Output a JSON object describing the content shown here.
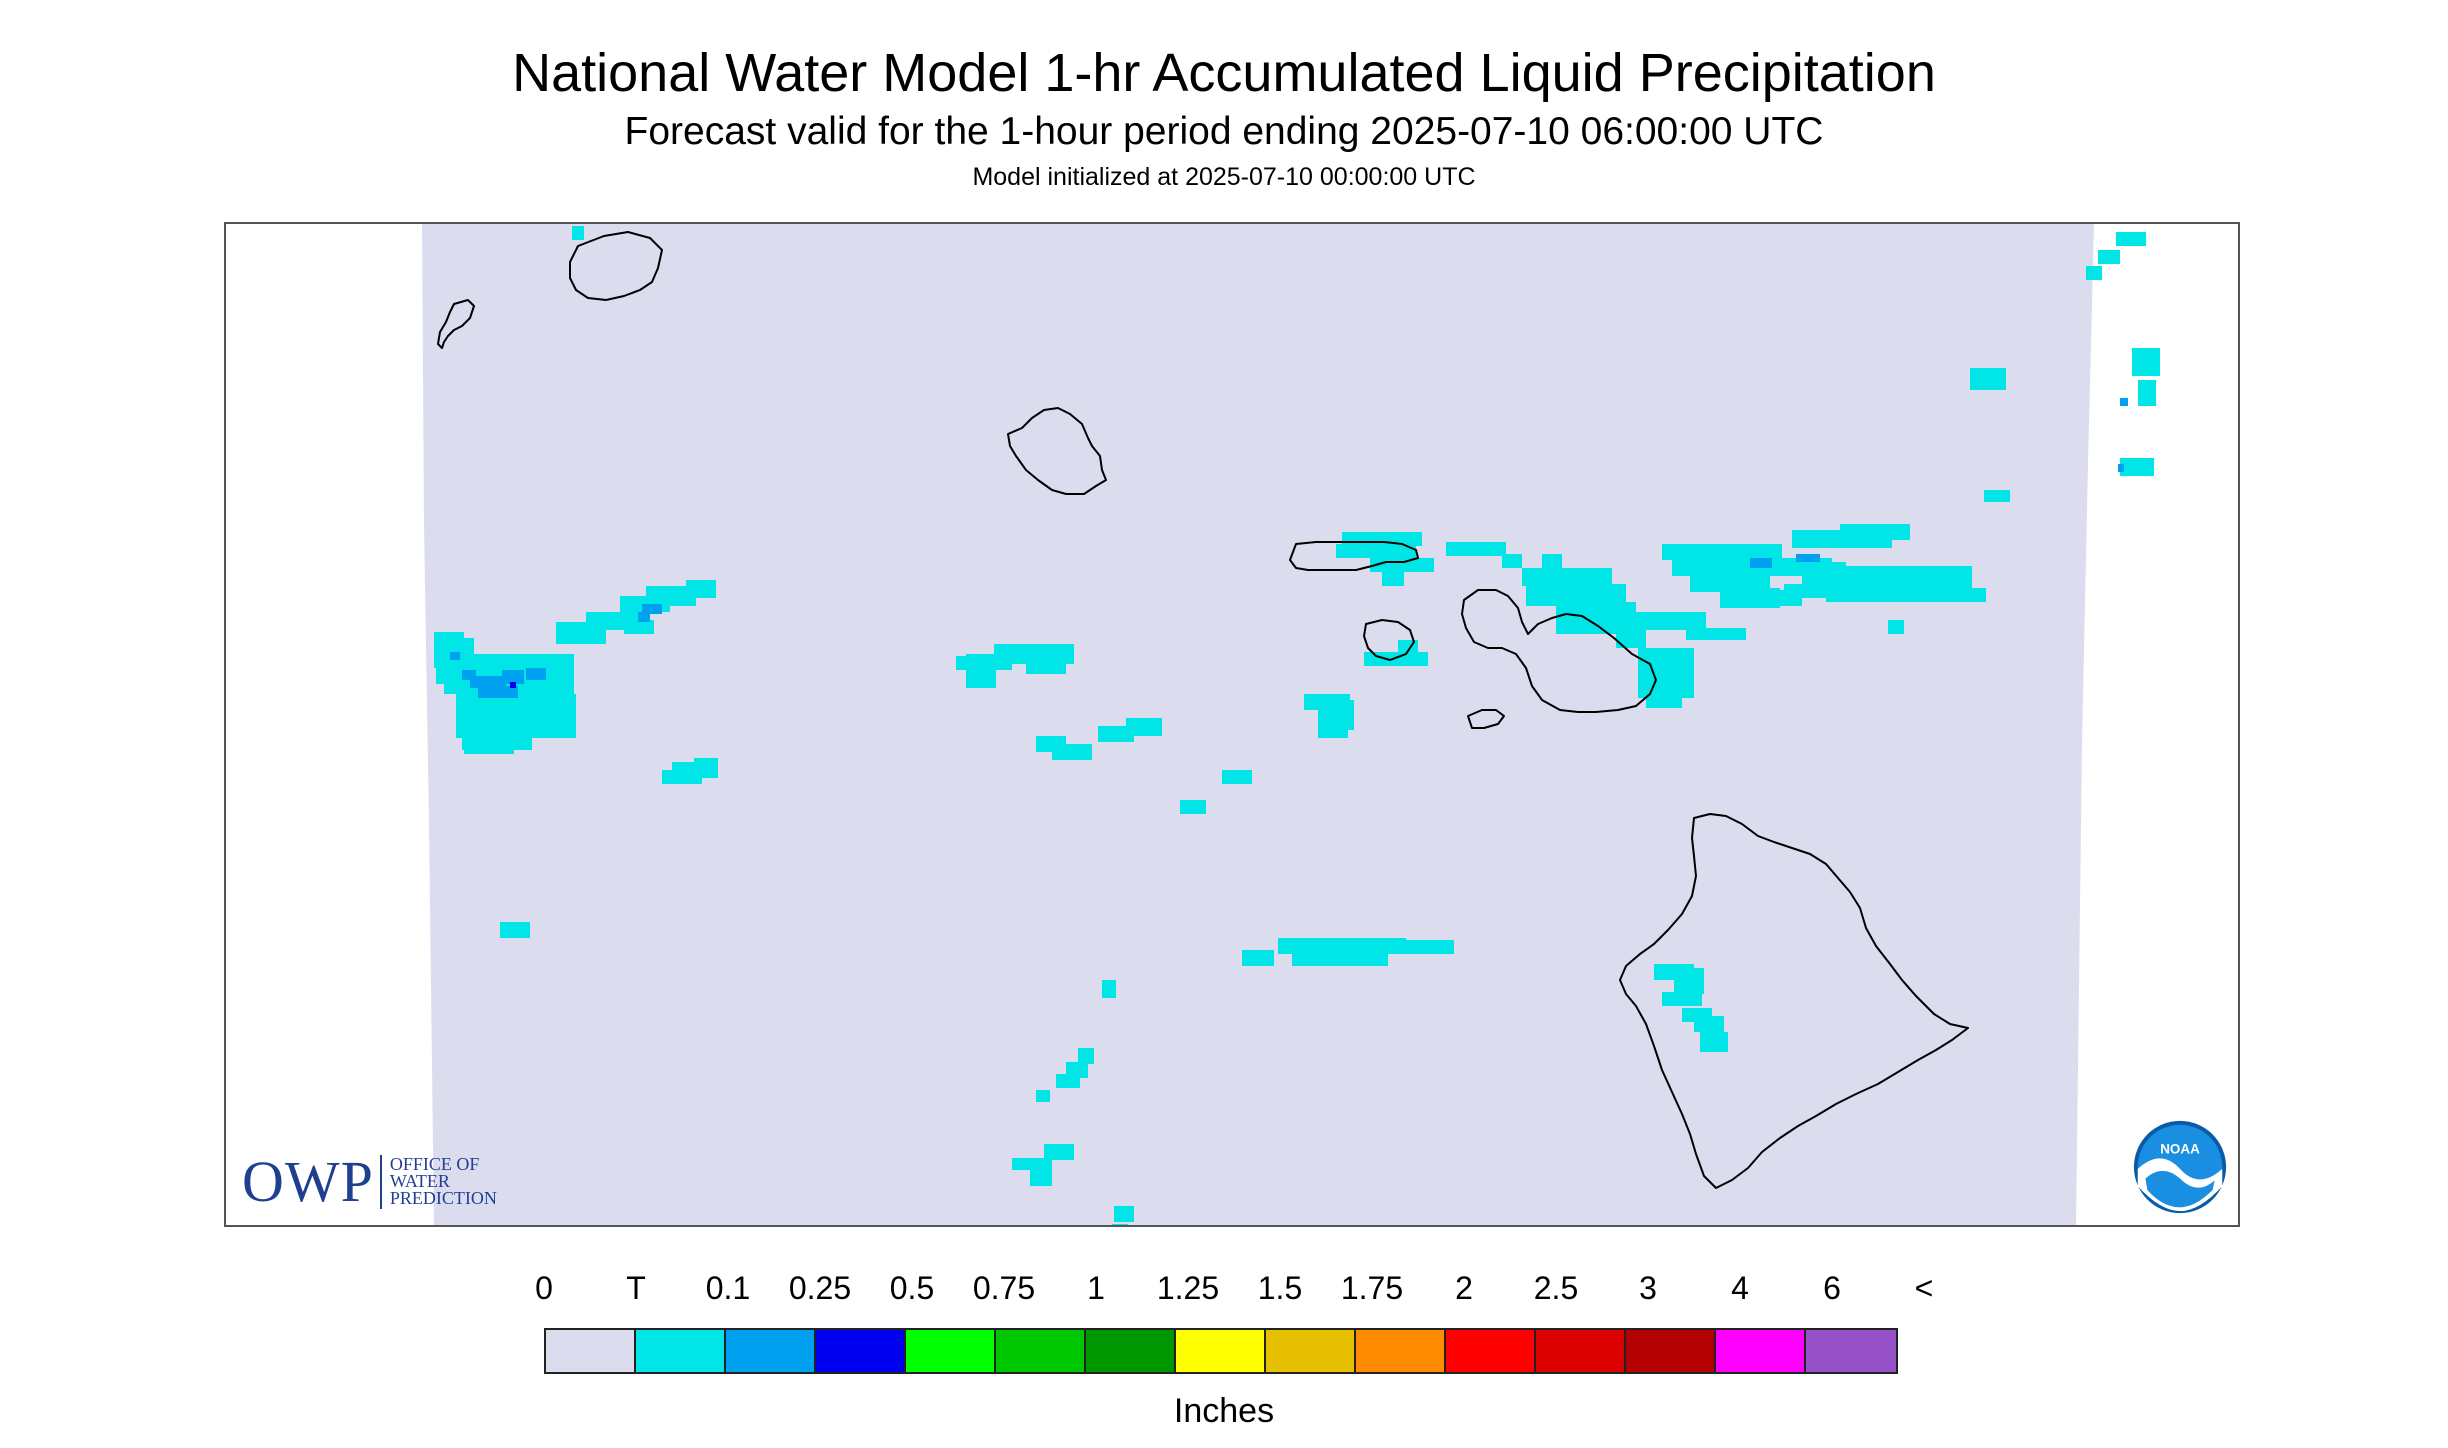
{
  "header": {
    "title": "National Water Model 1-hr Accumulated Liquid Precipitation",
    "subtitle": "Forecast valid for the 1-hour period ending 2025-07-10 06:00:00 UTC",
    "init_line": "Model initialized at 2025-07-10 00:00:00 UTC"
  },
  "map": {
    "background_color": "#dcdcef",
    "trace_color": "#00e6e6",
    "light_color": "#00a0f0",
    "coastline_color": "#000000",
    "icons": [
      "owp-logo",
      "noaa-logo"
    ]
  },
  "logos": {
    "owp_mark": "OWP",
    "owp_text_1": "OFFICE OF",
    "owp_text_2": "WATER",
    "owp_text_3": "PREDICTION",
    "noaa_text": "NOAA"
  },
  "legend": {
    "labels": [
      "0",
      "T",
      "0.1",
      "0.25",
      "0.5",
      "0.75",
      "1",
      "1.25",
      "1.5",
      "1.75",
      "2",
      "2.5",
      "3",
      "4",
      "6",
      "<"
    ],
    "colors": [
      "#dcdcef",
      "#00e6e6",
      "#00a0f0",
      "#0000f0",
      "#00ff00",
      "#00c800",
      "#009600",
      "#ffff00",
      "#e6c000",
      "#ff8c00",
      "#ff0000",
      "#dc0000",
      "#b40000",
      "#ff00ff",
      "#9650c8"
    ],
    "unit": "Inches"
  }
}
